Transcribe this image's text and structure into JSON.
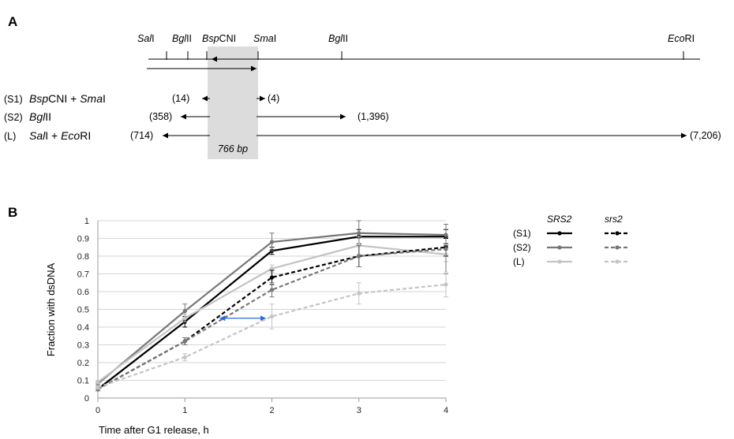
{
  "panel_a": {
    "label": "A",
    "sites": [
      {
        "name": "Sal",
        "suffix": "I"
      },
      {
        "name": "Bgl",
        "suffix": "II"
      },
      {
        "name": "Bsp",
        "suffix": "CNI"
      },
      {
        "name": "Sma",
        "suffix": "I"
      },
      {
        "name": "Bgl",
        "suffix": "II"
      },
      {
        "name": "Eco",
        "suffix": "RI"
      }
    ],
    "region_label": "766 bp",
    "fragments": [
      {
        "key": "(S1)",
        "enzyme1": "Bsp",
        "enzyme1_suffix": "CNI",
        "join": " + ",
        "enzyme2": "Sma",
        "enzyme2_suffix": "I",
        "left_size": "(14)",
        "right_size": "(4)"
      },
      {
        "key": "(S2)",
        "enzyme1": "Bgl",
        "enzyme1_suffix": "II",
        "join": "",
        "enzyme2": "",
        "enzyme2_suffix": "",
        "left_size": "(358)",
        "right_size": "(1,396)"
      },
      {
        "key": "(L)",
        "enzyme1": "Sal",
        "enzyme1_suffix": "I",
        "join": " + ",
        "enzyme2": "Eco",
        "enzyme2_suffix": "RI",
        "left_size": "(714)",
        "right_size": "(7,206)"
      }
    ]
  },
  "chart_data": {
    "panel_label": "B",
    "type": "line",
    "title": "",
    "xlabel": "Time after G1 release, h",
    "ylabel": "Fraction with dsDNA",
    "x": [
      0,
      1,
      2,
      3,
      4
    ],
    "xticks": [
      "0",
      "1",
      "2",
      "3",
      "4"
    ],
    "xlim": [
      0,
      4
    ],
    "ylim": [
      0,
      1
    ],
    "yticks": [
      "0",
      "0.1",
      "0.2",
      "0.3",
      "0.4",
      "0.5",
      "0.6",
      "0.7",
      "0.8",
      "0.9",
      "1"
    ],
    "grid": true,
    "legend": {
      "position": "right",
      "columns": [
        "SRS2",
        "srs2"
      ],
      "rows": [
        "(S1)",
        "(S2)",
        "(L)"
      ]
    },
    "series": [
      {
        "name": "(S1) SRS2",
        "color": "#000000",
        "dash": "solid",
        "values": [
          0.05,
          0.43,
          0.83,
          0.91,
          0.91
        ],
        "err": [
          0.01,
          0.03,
          0.02,
          0.04,
          0.04
        ]
      },
      {
        "name": "(S2) SRS2",
        "color": "#777777",
        "dash": "solid",
        "values": [
          0.08,
          0.49,
          0.88,
          0.93,
          0.92
        ],
        "err": [
          0.01,
          0.04,
          0.05,
          0.07,
          0.06
        ]
      },
      {
        "name": "(L) SRS2",
        "color": "#c4c4c4",
        "dash": "solid",
        "values": [
          0.09,
          0.45,
          0.73,
          0.86,
          0.81
        ],
        "err": [
          0.01,
          0.02,
          0.02,
          0.05,
          0.04
        ]
      },
      {
        "name": "(S1) srs2",
        "color": "#000000",
        "dash": "dashed",
        "values": [
          0.05,
          0.32,
          0.68,
          0.8,
          0.85
        ],
        "err": [
          0.01,
          0.02,
          0.04,
          0.06,
          0.05
        ]
      },
      {
        "name": "(S2) srs2",
        "color": "#777777",
        "dash": "dashed",
        "values": [
          0.05,
          0.32,
          0.61,
          0.8,
          0.84
        ],
        "err": [
          0.01,
          0.02,
          0.04,
          0.06,
          0.14
        ]
      },
      {
        "name": "(L) srs2",
        "color": "#c4c4c4",
        "dash": "dashed",
        "values": [
          0.06,
          0.23,
          0.46,
          0.59,
          0.64
        ],
        "err": [
          0.01,
          0.02,
          0.07,
          0.06,
          0.07
        ]
      }
    ],
    "annotation": {
      "type": "double-arrow",
      "color": "#2a6ae0",
      "y": 0.45,
      "x_from": 1.4,
      "x_to": 1.93
    }
  }
}
